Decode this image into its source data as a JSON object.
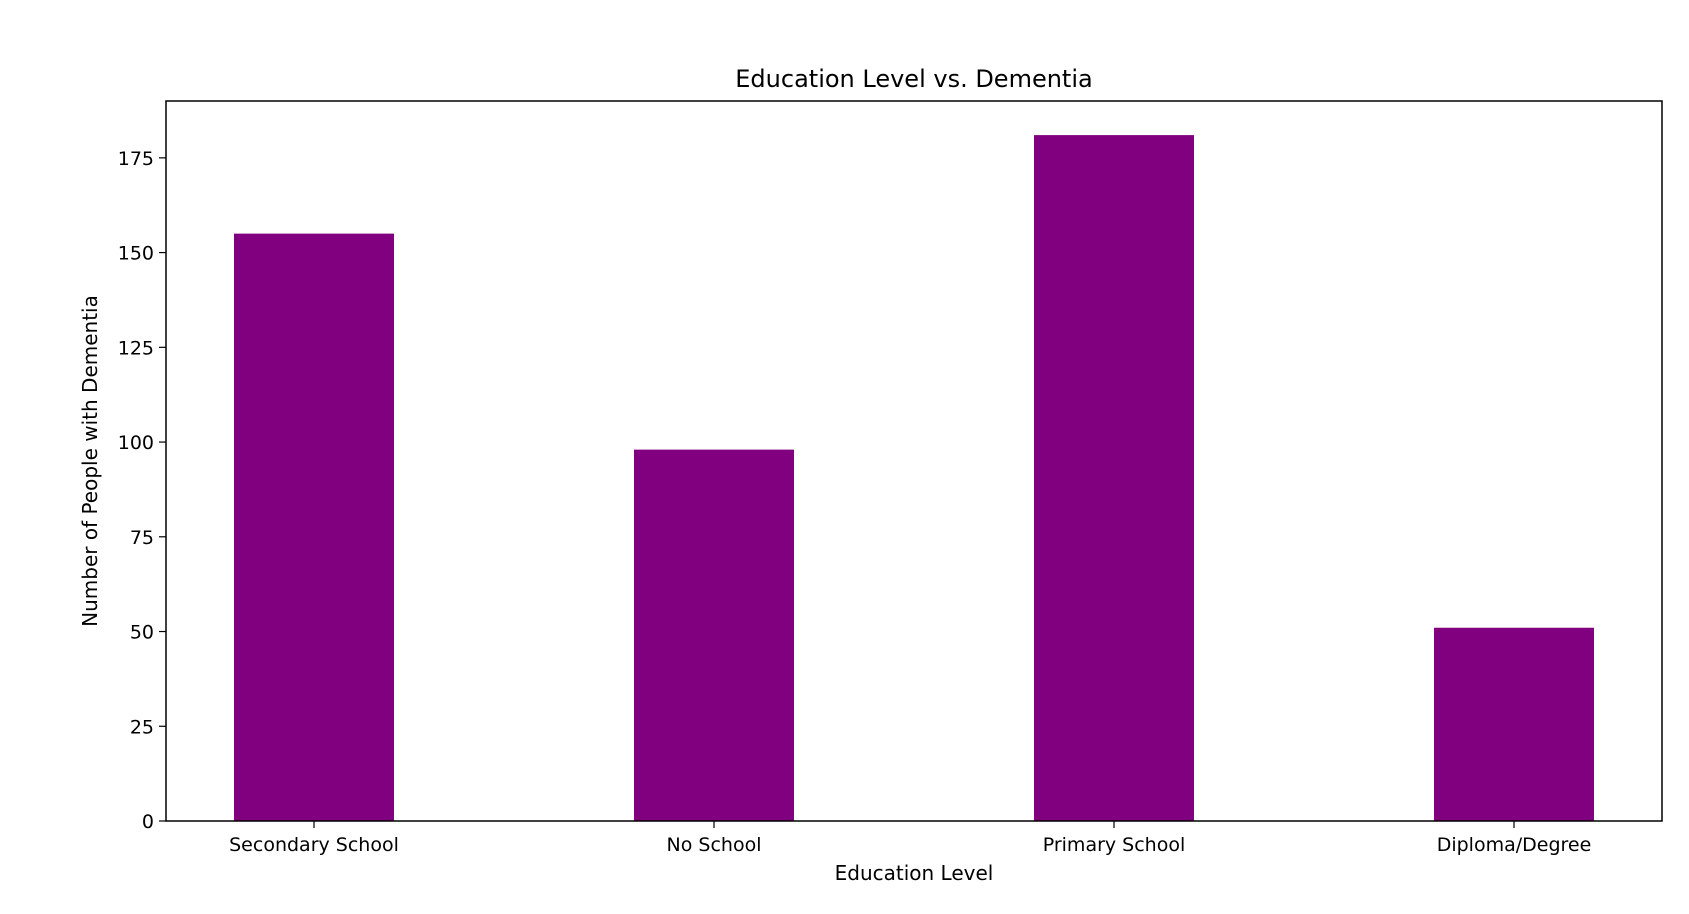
{
  "chart_data": {
    "type": "bar",
    "title": "Education Level vs. Dementia",
    "xlabel": "Education Level",
    "ylabel": "Number of People with Dementia",
    "categories": [
      "Secondary School",
      "No School",
      "Primary School",
      "Diploma/Degree"
    ],
    "values": [
      155,
      98,
      181,
      51
    ],
    "ylim": [
      0,
      190
    ],
    "yticks": [
      0,
      25,
      50,
      75,
      100,
      125,
      150,
      175
    ],
    "bar_color": "#800080",
    "grid": false,
    "legend": "none"
  }
}
